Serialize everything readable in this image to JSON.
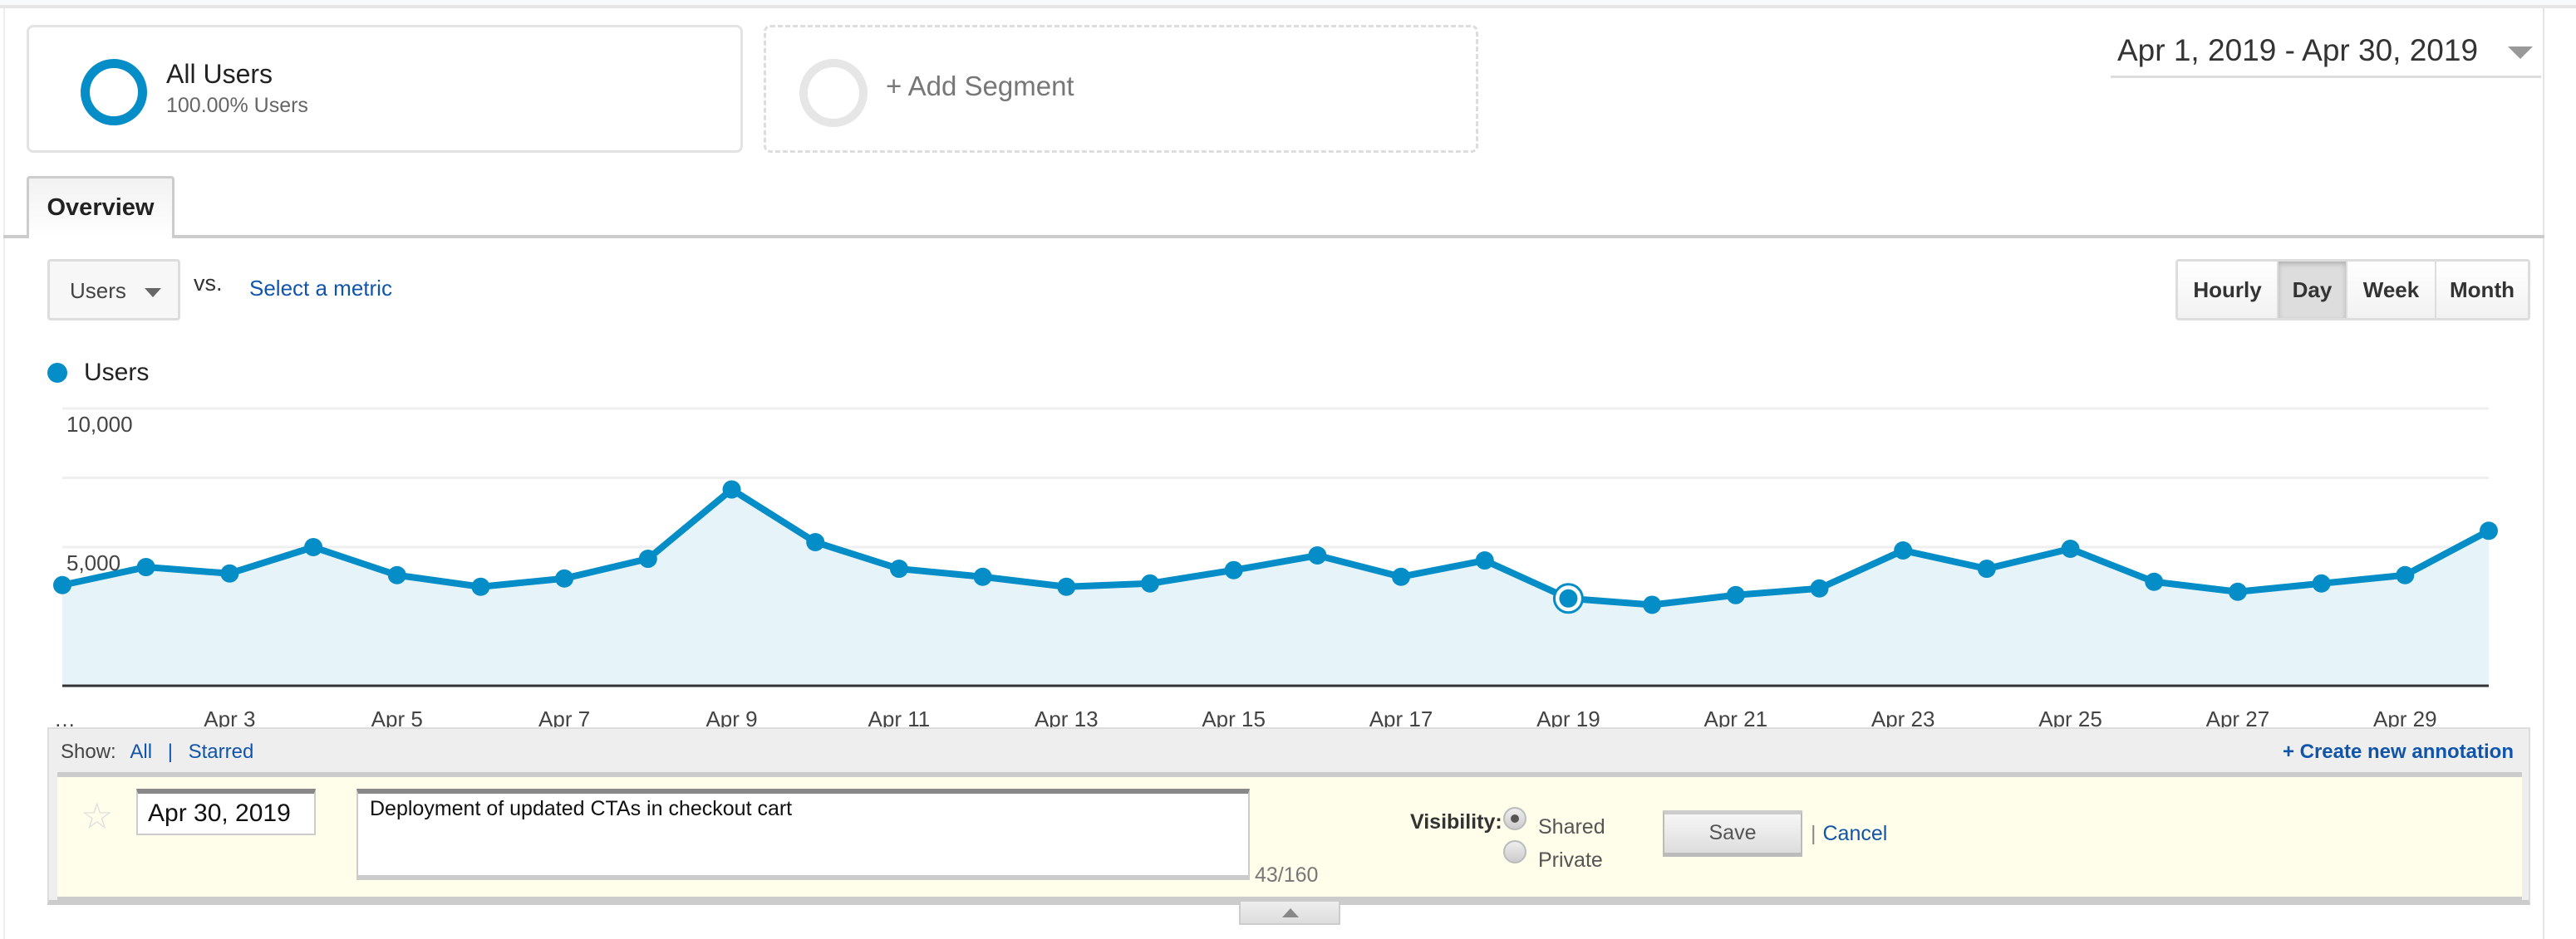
{
  "segments": [
    {
      "name": "All Users",
      "detail": "100.00% Users"
    },
    {
      "name": "+ Add Segment"
    }
  ],
  "date_range": "Apr 1, 2019 - Apr 30, 2019",
  "tabs": [
    {
      "label": "Overview"
    }
  ],
  "metric": {
    "selected": "Users",
    "vs": "vs.",
    "select_metric": "Select a metric"
  },
  "granularity": {
    "options": [
      "Hourly",
      "Day",
      "Week",
      "Month"
    ],
    "active": "Day"
  },
  "legend": {
    "label": "Users",
    "color": "#058dc7"
  },
  "chart_data": {
    "type": "area",
    "title": "",
    "series": [
      {
        "name": "Users",
        "values": [
          3630,
          4280,
          4050,
          5000,
          3990,
          3570,
          3870,
          4580,
          7080,
          5180,
          4220,
          3930,
          3570,
          3690,
          4170,
          4700,
          3930,
          4520,
          3150,
          2920,
          3270,
          3510,
          4880,
          4220,
          4940,
          3750,
          3390,
          3690,
          3990,
          5590
        ]
      }
    ],
    "x": [
      "Apr 1",
      "Apr 2",
      "Apr 3",
      "Apr 4",
      "Apr 5",
      "Apr 6",
      "Apr 7",
      "Apr 8",
      "Apr 9",
      "Apr 10",
      "Apr 11",
      "Apr 12",
      "Apr 13",
      "Apr 14",
      "Apr 15",
      "Apr 16",
      "Apr 17",
      "Apr 18",
      "Apr 19",
      "Apr 20",
      "Apr 21",
      "Apr 22",
      "Apr 23",
      "Apr 24",
      "Apr 25",
      "Apr 26",
      "Apr 27",
      "Apr 28",
      "Apr 29",
      "Apr 30"
    ],
    "x_tick_labels": [
      "…",
      "Apr 3",
      "Apr 5",
      "Apr 7",
      "Apr 9",
      "Apr 11",
      "Apr 13",
      "Apr 15",
      "Apr 17",
      "Apr 19",
      "Apr 21",
      "Apr 23",
      "Apr 25",
      "Apr 27",
      "Apr 29"
    ],
    "y_tick_labels": [
      "10,000",
      "5,000"
    ],
    "y_ticks": [
      10000,
      5000
    ],
    "ylim": [
      0,
      10000
    ],
    "grid": true,
    "highlighted_index": 18,
    "line_color": "#058dc7",
    "fill_color": "#e6f3f9"
  },
  "annotations": {
    "show_label": "Show:",
    "show_all": "All",
    "sep": "|",
    "show_starred": "Starred",
    "create": "+ Create new annotation",
    "date": "Apr 30, 2019",
    "text": "Deployment of updated CTAs in checkout cart",
    "count": "43/160",
    "visibility_label": "Visibility:",
    "shared": "Shared",
    "private": "Private",
    "save": "Save",
    "cancel_sep": "|",
    "cancel": "Cancel"
  }
}
